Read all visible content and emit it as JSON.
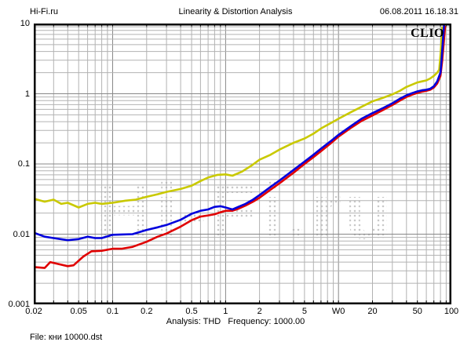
{
  "header": {
    "site": "Hi-Fi.ru",
    "title": "Linearity & Distortion Analysis",
    "datetime": "06.08.2011 16.18.31"
  },
  "branding": {
    "logo": "CLIO",
    "watermark": "Hi-Fi.ru"
  },
  "footer": {
    "analysis_line": "Analysis: THD   Frequency: 1000.00",
    "file_line": "File: кни 10000.dst"
  },
  "chart_data": {
    "type": "line",
    "title": "Linearity & Distortion Analysis",
    "x_scale": "log",
    "y_scale": "log",
    "xlim": [
      0.02,
      100
    ],
    "ylim": [
      0.001,
      10
    ],
    "grid": "full log grid, minor and major lines",
    "legend": "none",
    "x_tick_labels": [
      {
        "v": 0.02,
        "label": "0.02"
      },
      {
        "v": 0.05,
        "label": "0.05"
      },
      {
        "v": 0.1,
        "label": "0.1"
      },
      {
        "v": 0.2,
        "label": "0.2"
      },
      {
        "v": 0.5,
        "label": "0.5"
      },
      {
        "v": 1,
        "label": "1"
      },
      {
        "v": 2,
        "label": "2"
      },
      {
        "v": 5,
        "label": "5"
      },
      {
        "v": 10,
        "label": "W0"
      },
      {
        "v": 20,
        "label": "20"
      },
      {
        "v": 50,
        "label": "50"
      },
      {
        "v": 100,
        "label": "100"
      }
    ],
    "y_tick_labels": [
      {
        "v": 10,
        "label": "10"
      },
      {
        "v": 1,
        "label": "1"
      },
      {
        "v": 0.1,
        "label": "0.1"
      },
      {
        "v": 0.01,
        "label": "0.01"
      },
      {
        "v": 0.001,
        "label": "0.001"
      }
    ],
    "colors": {
      "minor_grid": "#b2b2b2",
      "major_grid": "#888888",
      "border": "#000000",
      "watermark_dots": "#c9c9c9"
    },
    "series": [
      {
        "name": "yellow-curve",
        "color": "#c9c900",
        "points": [
          [
            0.02,
            0.032
          ],
          [
            0.025,
            0.029
          ],
          [
            0.03,
            0.031
          ],
          [
            0.035,
            0.027
          ],
          [
            0.04,
            0.028
          ],
          [
            0.05,
            0.024
          ],
          [
            0.06,
            0.027
          ],
          [
            0.07,
            0.028
          ],
          [
            0.08,
            0.027
          ],
          [
            0.1,
            0.028
          ],
          [
            0.13,
            0.03
          ],
          [
            0.16,
            0.031
          ],
          [
            0.2,
            0.034
          ],
          [
            0.25,
            0.037
          ],
          [
            0.3,
            0.04
          ],
          [
            0.4,
            0.044
          ],
          [
            0.5,
            0.049
          ],
          [
            0.6,
            0.057
          ],
          [
            0.7,
            0.064
          ],
          [
            0.85,
            0.07
          ],
          [
            1.0,
            0.071
          ],
          [
            1.15,
            0.068
          ],
          [
            1.4,
            0.078
          ],
          [
            1.7,
            0.095
          ],
          [
            2.0,
            0.115
          ],
          [
            2.5,
            0.135
          ],
          [
            3.0,
            0.16
          ],
          [
            4.0,
            0.2
          ],
          [
            5.0,
            0.23
          ],
          [
            6.0,
            0.27
          ],
          [
            7.0,
            0.32
          ],
          [
            8.5,
            0.38
          ],
          [
            10,
            0.44
          ],
          [
            13,
            0.55
          ],
          [
            16,
            0.65
          ],
          [
            20,
            0.78
          ],
          [
            25,
            0.88
          ],
          [
            30,
            0.98
          ],
          [
            35,
            1.1
          ],
          [
            40,
            1.25
          ],
          [
            45,
            1.35
          ],
          [
            50,
            1.45
          ],
          [
            55,
            1.5
          ],
          [
            60,
            1.55
          ],
          [
            65,
            1.65
          ],
          [
            70,
            1.8
          ],
          [
            75,
            2.0
          ],
          [
            78,
            2.2
          ],
          [
            80,
            3.5
          ],
          [
            83,
            8.8
          ]
        ]
      },
      {
        "name": "red-curve",
        "color": "#e00000",
        "points": [
          [
            0.02,
            0.0034
          ],
          [
            0.025,
            0.0033
          ],
          [
            0.028,
            0.004
          ],
          [
            0.032,
            0.0038
          ],
          [
            0.04,
            0.0035
          ],
          [
            0.045,
            0.0036
          ],
          [
            0.055,
            0.0048
          ],
          [
            0.065,
            0.0057
          ],
          [
            0.08,
            0.0058
          ],
          [
            0.1,
            0.0062
          ],
          [
            0.12,
            0.0062
          ],
          [
            0.15,
            0.0066
          ],
          [
            0.2,
            0.0078
          ],
          [
            0.25,
            0.0092
          ],
          [
            0.3,
            0.0102
          ],
          [
            0.4,
            0.0128
          ],
          [
            0.5,
            0.0158
          ],
          [
            0.6,
            0.0178
          ],
          [
            0.7,
            0.0185
          ],
          [
            0.8,
            0.0192
          ],
          [
            0.9,
            0.0205
          ],
          [
            1.0,
            0.0215
          ],
          [
            1.15,
            0.0215
          ],
          [
            1.3,
            0.023
          ],
          [
            1.5,
            0.0255
          ],
          [
            1.75,
            0.029
          ],
          [
            2.0,
            0.033
          ],
          [
            2.5,
            0.043
          ],
          [
            3.0,
            0.053
          ],
          [
            4.0,
            0.075
          ],
          [
            5.0,
            0.1
          ],
          [
            6.0,
            0.125
          ],
          [
            7.0,
            0.152
          ],
          [
            8.5,
            0.195
          ],
          [
            10,
            0.245
          ],
          [
            13,
            0.33
          ],
          [
            16,
            0.41
          ],
          [
            20,
            0.49
          ],
          [
            25,
            0.59
          ],
          [
            30,
            0.69
          ],
          [
            35,
            0.8
          ],
          [
            40,
            0.9
          ],
          [
            45,
            0.97
          ],
          [
            50,
            1.03
          ],
          [
            55,
            1.07
          ],
          [
            60,
            1.1
          ],
          [
            65,
            1.14
          ],
          [
            70,
            1.23
          ],
          [
            75,
            1.4
          ],
          [
            80,
            1.8
          ],
          [
            83,
            3.0
          ],
          [
            88,
            9.0
          ]
        ]
      },
      {
        "name": "blue-curve",
        "color": "#0000dd",
        "points": [
          [
            0.02,
            0.0105
          ],
          [
            0.025,
            0.0092
          ],
          [
            0.03,
            0.0088
          ],
          [
            0.04,
            0.0082
          ],
          [
            0.05,
            0.0085
          ],
          [
            0.06,
            0.0092
          ],
          [
            0.07,
            0.0088
          ],
          [
            0.08,
            0.0088
          ],
          [
            0.1,
            0.0098
          ],
          [
            0.12,
            0.0099
          ],
          [
            0.15,
            0.01
          ],
          [
            0.2,
            0.0115
          ],
          [
            0.25,
            0.0125
          ],
          [
            0.3,
            0.0135
          ],
          [
            0.4,
            0.016
          ],
          [
            0.5,
            0.0195
          ],
          [
            0.6,
            0.0215
          ],
          [
            0.7,
            0.0225
          ],
          [
            0.8,
            0.0245
          ],
          [
            0.9,
            0.025
          ],
          [
            1.0,
            0.024
          ],
          [
            1.15,
            0.0225
          ],
          [
            1.3,
            0.0245
          ],
          [
            1.5,
            0.027
          ],
          [
            1.75,
            0.031
          ],
          [
            2.0,
            0.036
          ],
          [
            2.5,
            0.047
          ],
          [
            3.0,
            0.058
          ],
          [
            4.0,
            0.082
          ],
          [
            5.0,
            0.108
          ],
          [
            6.0,
            0.135
          ],
          [
            7.0,
            0.165
          ],
          [
            8.5,
            0.21
          ],
          [
            10,
            0.26
          ],
          [
            13,
            0.35
          ],
          [
            16,
            0.44
          ],
          [
            20,
            0.53
          ],
          [
            25,
            0.63
          ],
          [
            30,
            0.73
          ],
          [
            35,
            0.85
          ],
          [
            40,
            0.95
          ],
          [
            45,
            1.02
          ],
          [
            50,
            1.08
          ],
          [
            55,
            1.12
          ],
          [
            60,
            1.14
          ],
          [
            65,
            1.18
          ],
          [
            70,
            1.28
          ],
          [
            75,
            1.5
          ],
          [
            80,
            2.0
          ],
          [
            82,
            3.2
          ],
          [
            86,
            9.4
          ]
        ]
      }
    ]
  }
}
